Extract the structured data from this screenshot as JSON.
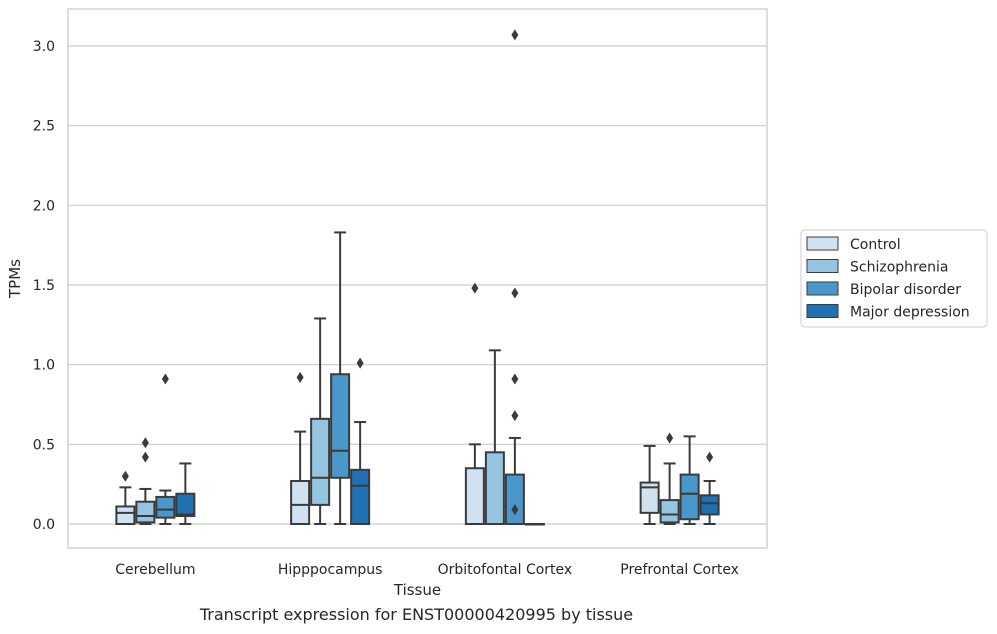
{
  "caption": "Transcript expression for ENST00000420995 by tissue",
  "chart_data": {
    "type": "box",
    "xlabel": "Tissue",
    "ylabel": "TPMs",
    "ylim": [
      -0.15,
      3.23
    ],
    "yticks": [
      "0.0",
      "0.5",
      "1.0",
      "1.5",
      "2.0",
      "2.5",
      "3.0"
    ],
    "categories": [
      "Cerebellum",
      "Hipppocampus",
      "Orbitofontal Cortex",
      "Prefrontal Cortex"
    ],
    "grid": "horizontal",
    "legend_position": "right",
    "series": [
      {
        "name": "Control",
        "color": "#d0e1f2",
        "boxes": [
          {
            "whislo": 0,
            "q1": 0,
            "med": 0.07,
            "q3": 0.11,
            "whishi": 0.23,
            "fliers": [
              0.3
            ]
          },
          {
            "whislo": 0,
            "q1": 0,
            "med": 0.12,
            "q3": 0.27,
            "whishi": 0.58,
            "fliers": [
              0.92
            ]
          },
          {
            "whislo": 0,
            "q1": 0,
            "med": 0,
            "q3": 0.35,
            "whishi": 0.5,
            "fliers": [
              1.48
            ]
          },
          {
            "whislo": 0,
            "q1": 0.07,
            "med": 0.23,
            "q3": 0.26,
            "whishi": 0.49,
            "fliers": []
          }
        ]
      },
      {
        "name": "Schizophrenia",
        "color": "#94c4df",
        "boxes": [
          {
            "whislo": 0,
            "q1": 0.01,
            "med": 0.05,
            "q3": 0.14,
            "whishi": 0.22,
            "fliers": [
              0.42,
              0.51
            ]
          },
          {
            "whislo": 0,
            "q1": 0.12,
            "med": 0.29,
            "q3": 0.66,
            "whishi": 1.29,
            "fliers": []
          },
          {
            "whislo": 0,
            "q1": 0,
            "med": 0,
            "q3": 0.45,
            "whishi": 1.09,
            "fliers": []
          },
          {
            "whislo": 0,
            "q1": 0.01,
            "med": 0.06,
            "q3": 0.15,
            "whishi": 0.38,
            "fliers": [
              0.54
            ]
          }
        ]
      },
      {
        "name": "Bipolar disorder",
        "color": "#4a98c9",
        "boxes": [
          {
            "whislo": 0,
            "q1": 0.04,
            "med": 0.09,
            "q3": 0.17,
            "whishi": 0.21,
            "fliers": [
              0.91
            ]
          },
          {
            "whislo": 0,
            "q1": 0.29,
            "med": 0.46,
            "q3": 0.94,
            "whishi": 1.83,
            "fliers": []
          },
          {
            "whislo": 0,
            "q1": 0,
            "med": 0,
            "q3": 0.31,
            "whishi": 0.54,
            "fliers": [
              0.09,
              0.68,
              0.91,
              1.45,
              3.07
            ]
          },
          {
            "whislo": 0,
            "q1": 0.03,
            "med": 0.19,
            "q3": 0.31,
            "whishi": 0.55,
            "fliers": []
          }
        ]
      },
      {
        "name": "Major depression",
        "color": "#2070b4",
        "boxes": [
          {
            "whislo": 0,
            "q1": 0.05,
            "med": 0.06,
            "q3": 0.19,
            "whishi": 0.38,
            "fliers": []
          },
          {
            "whislo": 0,
            "q1": 0,
            "med": 0.24,
            "q3": 0.34,
            "whishi": 0.64,
            "fliers": [
              1.01
            ]
          },
          {
            "whislo": 0,
            "q1": 0,
            "med": 0,
            "q3": 0,
            "whishi": 0,
            "fliers": []
          },
          {
            "whislo": 0,
            "q1": 0.06,
            "med": 0.13,
            "q3": 0.18,
            "whishi": 0.27,
            "fliers": [
              0.42
            ]
          }
        ]
      }
    ]
  }
}
